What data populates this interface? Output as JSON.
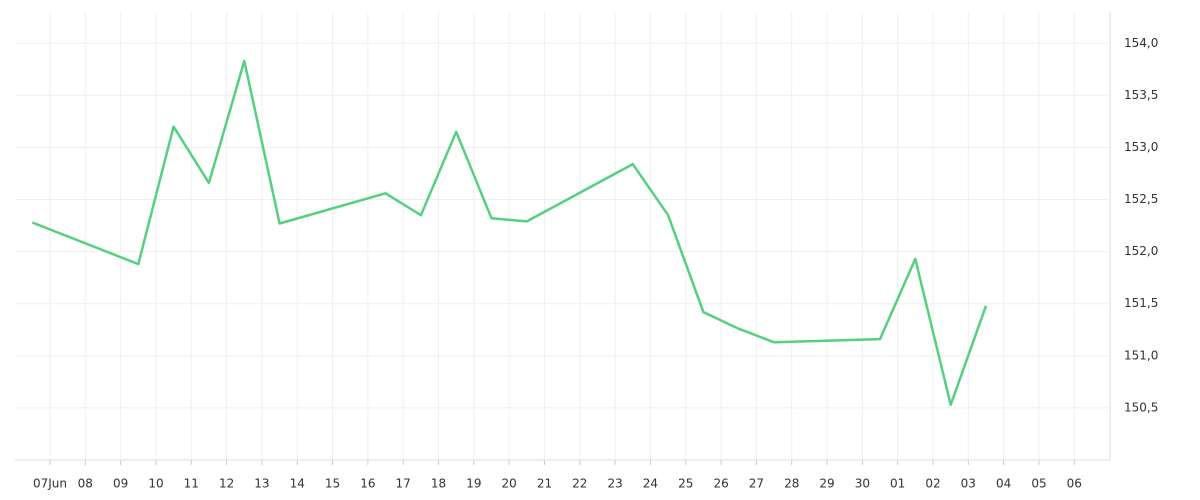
{
  "chart_data": {
    "type": "line",
    "xticks": [
      "07Jun",
      "08",
      "09",
      "10",
      "11",
      "12",
      "13",
      "14",
      "15",
      "16",
      "17",
      "18",
      "19",
      "20",
      "21",
      "22",
      "23",
      "24",
      "25",
      "26",
      "27",
      "28",
      "29",
      "30",
      "01",
      "02",
      "03",
      "04",
      "05",
      "06"
    ],
    "x": [
      "07Jun",
      "10",
      "11",
      "12",
      "13",
      "14",
      "17",
      "18",
      "19",
      "20",
      "21",
      "24",
      "25",
      "26",
      "27",
      "28",
      "01",
      "02",
      "03",
      "04"
    ],
    "series": [
      {
        "color": "#55d07f",
        "values": [
          152.28,
          151.88,
          153.2,
          152.66,
          153.83,
          152.27,
          152.56,
          152.35,
          153.15,
          152.32,
          152.29,
          152.84,
          152.35,
          151.42,
          151.26,
          151.13,
          151.16,
          151.93,
          150.53,
          151.48
        ]
      }
    ],
    "ylim": [
      150,
      154.3
    ],
    "yticks": [
      {
        "value": 150.5,
        "label": "150,5"
      },
      {
        "value": 151,
        "label": "151,0"
      },
      {
        "value": 151.5,
        "label": "151,5"
      },
      {
        "value": 152,
        "label": "152,0"
      },
      {
        "value": 152.5,
        "label": "152,5"
      },
      {
        "value": 153,
        "label": "153,0"
      },
      {
        "value": 153.5,
        "label": "153,5"
      },
      {
        "value": 154,
        "label": "154,0"
      }
    ],
    "grid": true
  }
}
